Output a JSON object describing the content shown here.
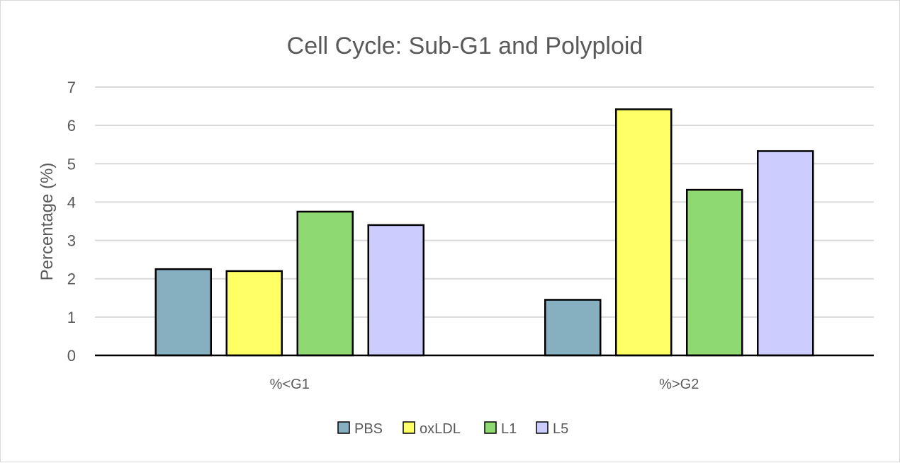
{
  "chart_data": {
    "type": "bar",
    "title": "Cell Cycle: Sub-G1 and Polyploid",
    "xlabel": "",
    "ylabel": "Percentage (%)",
    "ylim": [
      0,
      7
    ],
    "yticks": [
      "0",
      "1",
      "2",
      "3",
      "4",
      "5",
      "6",
      "7"
    ],
    "grid": true,
    "legend_position": "bottom",
    "categories": [
      "%<G1",
      "%>G2"
    ],
    "series": [
      {
        "name": "PBS",
        "color": "#86afbf",
        "values": [
          2.25,
          1.45
        ]
      },
      {
        "name": "oxLDL",
        "color": "#ffff66",
        "values": [
          2.2,
          6.42
        ]
      },
      {
        "name": "L1",
        "color": "#8fd973",
        "values": [
          3.75,
          4.32
        ]
      },
      {
        "name": "L5",
        "color": "#ccccff",
        "values": [
          3.4,
          5.33
        ]
      }
    ]
  }
}
